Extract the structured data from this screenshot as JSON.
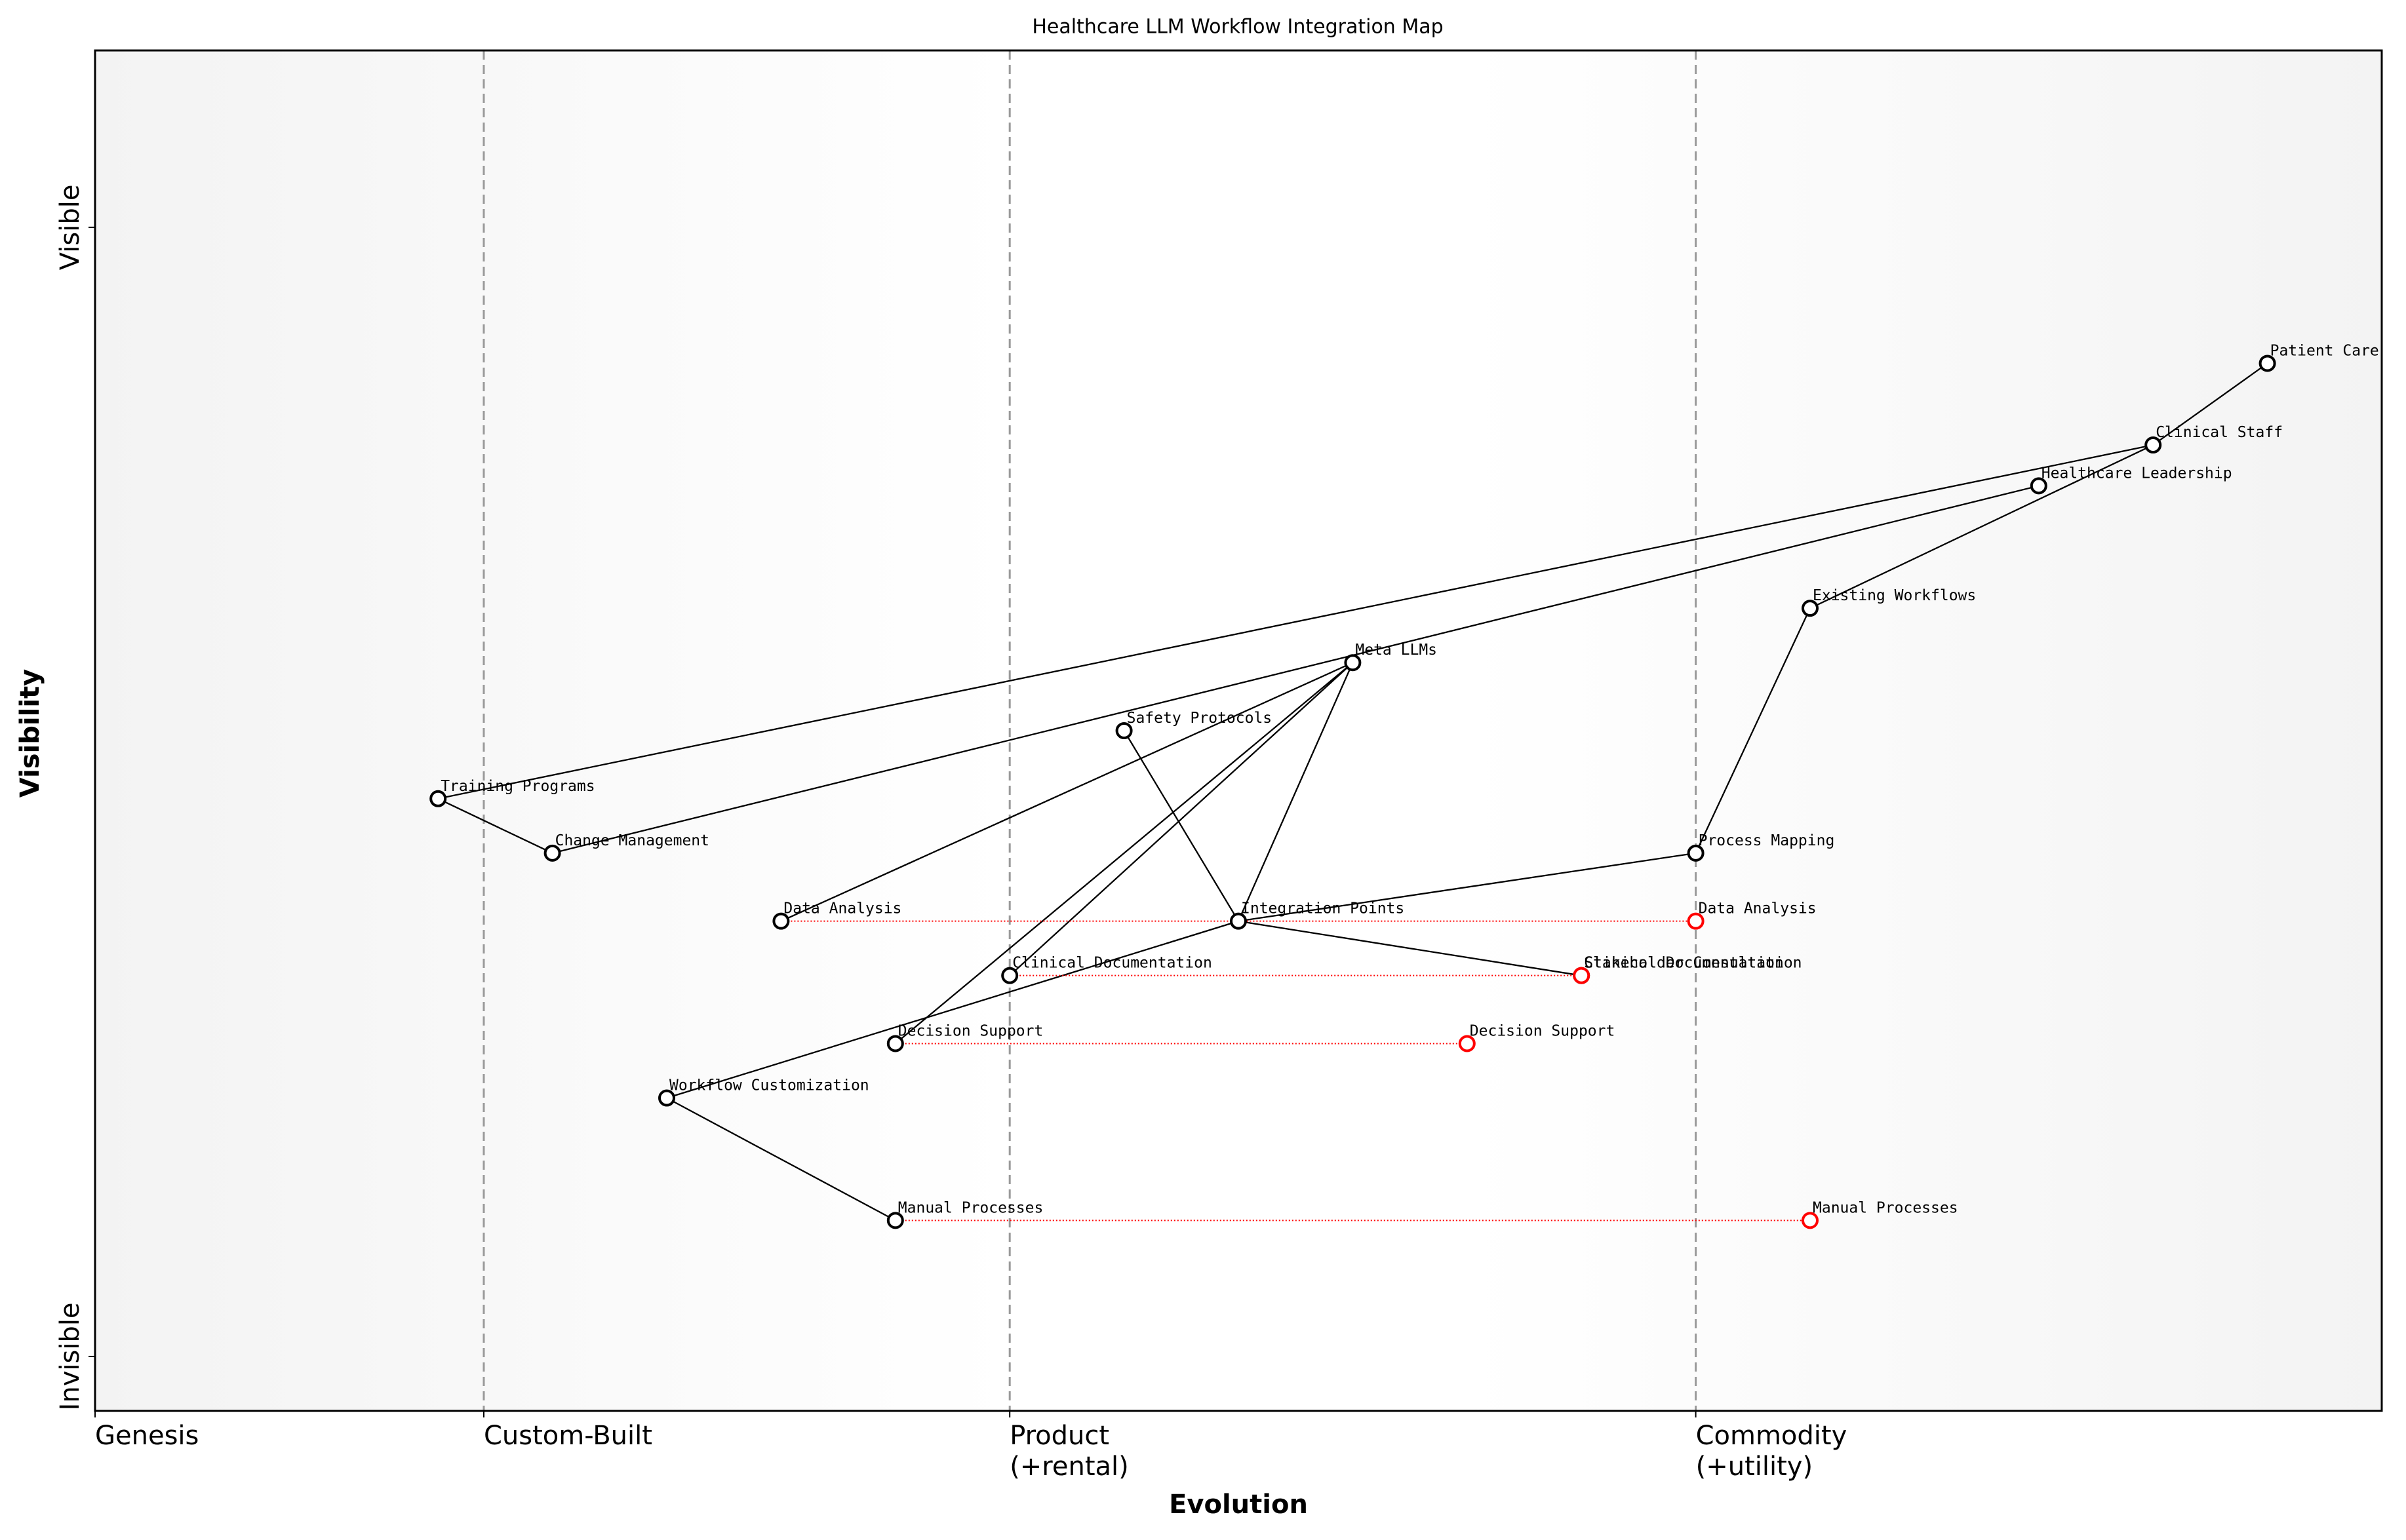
{
  "chart_data": {
    "type": "wardley",
    "title": "Healthcare LLM Workflow Integration Map",
    "xlabel": "Evolution",
    "ylabel": "Visibility",
    "xlim": [
      0,
      1
    ],
    "ylim": [
      0,
      1
    ],
    "xticks": [
      {
        "value": 0,
        "label": "Genesis"
      },
      {
        "value": 0.17,
        "label": "Custom-Built"
      },
      {
        "value": 0.4,
        "label": "Product\n(+rental)"
      },
      {
        "value": 0.7,
        "label": "Commodity\n(+utility)"
      }
    ],
    "yticks": [
      {
        "value": 0.04,
        "label": "Invisible"
      },
      {
        "value": 0.87,
        "label": "Visible"
      }
    ],
    "component_color": "#000000",
    "evolution_color": "#ff0000",
    "components": [
      {
        "name": "Patient Care",
        "x": 0.95,
        "y": 0.77
      },
      {
        "name": "Clinical Staff",
        "x": 0.9,
        "y": 0.71
      },
      {
        "name": "Healthcare Leadership",
        "x": 0.85,
        "y": 0.68
      },
      {
        "name": "Existing Workflows",
        "x": 0.75,
        "y": 0.59
      },
      {
        "name": "Meta LLMs",
        "x": 0.55,
        "y": 0.55
      },
      {
        "name": "Safety Protocols",
        "x": 0.45,
        "y": 0.5
      },
      {
        "name": "Training Programs",
        "x": 0.15,
        "y": 0.45
      },
      {
        "name": "Change Management",
        "x": 0.2,
        "y": 0.41
      },
      {
        "name": "Process Mapping",
        "x": 0.7,
        "y": 0.41
      },
      {
        "name": "Data Analysis",
        "x": 0.3,
        "y": 0.36
      },
      {
        "name": "Integration Points",
        "x": 0.5,
        "y": 0.36
      },
      {
        "name": "Clinical Documentation",
        "x": 0.4,
        "y": 0.32
      },
      {
        "name": "Stakeholder Consultation",
        "x": 0.65,
        "y": 0.32
      },
      {
        "name": "Decision Support",
        "x": 0.35,
        "y": 0.27
      },
      {
        "name": "Workflow Customization",
        "x": 0.25,
        "y": 0.23
      },
      {
        "name": "Manual Processes",
        "x": 0.35,
        "y": 0.14
      }
    ],
    "links": [
      [
        0,
        1
      ],
      [
        1,
        6
      ],
      [
        1,
        3
      ],
      [
        2,
        7
      ],
      [
        6,
        7
      ],
      [
        3,
        8
      ],
      [
        8,
        10
      ],
      [
        4,
        9
      ],
      [
        4,
        10
      ],
      [
        4,
        11
      ],
      [
        4,
        13
      ],
      [
        5,
        10
      ],
      [
        10,
        12
      ],
      [
        10,
        14
      ],
      [
        14,
        15
      ]
    ],
    "evolutions": [
      {
        "component": 9,
        "x": 0.7
      },
      {
        "component": 11,
        "x": 0.65
      },
      {
        "component": 13,
        "x": 0.6
      },
      {
        "component": 15,
        "x": 0.75
      }
    ]
  }
}
